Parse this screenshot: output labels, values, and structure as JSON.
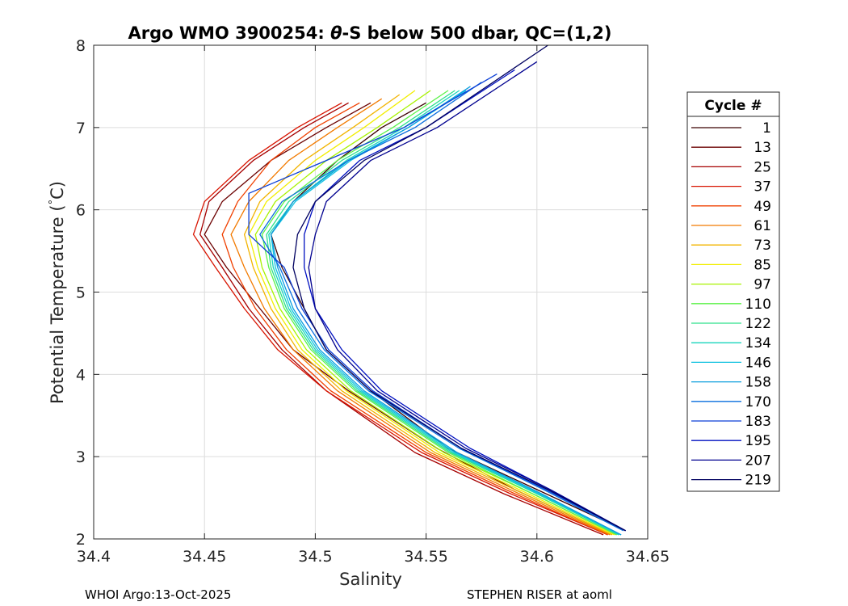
{
  "chart_data": {
    "type": "line",
    "title_parts": [
      "Argo WMO 3900254: ",
      "θ",
      "-S below 500 dbar,  QC=(1,2)"
    ],
    "xlabel": "Salinity",
    "ylabel_parts": [
      "Potential Temperature (",
      "°",
      "C)"
    ],
    "xlim": [
      34.4,
      34.65
    ],
    "ylim": [
      2,
      8
    ],
    "xticks": [
      34.4,
      34.45,
      34.5,
      34.55,
      34.6,
      34.65
    ],
    "xtick_labels": [
      "34.4",
      "34.45",
      "34.5",
      "34.55",
      "34.6",
      "34.65"
    ],
    "yticks": [
      2,
      3,
      4,
      5,
      6,
      7,
      8
    ],
    "ytick_labels": [
      "2",
      "3",
      "4",
      "5",
      "6",
      "7",
      "8"
    ],
    "grid": true,
    "legend": {
      "title": "Cycle #",
      "placement": "right, outside",
      "entries": [
        {
          "label": "1",
          "color": "#3a0000"
        },
        {
          "label": "13",
          "color": "#6b0000"
        },
        {
          "label": "25",
          "color": "#a60000"
        },
        {
          "label": "37",
          "color": "#d81400"
        },
        {
          "label": "49",
          "color": "#f04000"
        },
        {
          "label": "61",
          "color": "#f27a00"
        },
        {
          "label": "73",
          "color": "#f2b400"
        },
        {
          "label": "85",
          "color": "#f2ee00"
        },
        {
          "label": "97",
          "color": "#a8f200"
        },
        {
          "label": "110",
          "color": "#5cf24a"
        },
        {
          "label": "122",
          "color": "#2de08c"
        },
        {
          "label": "134",
          "color": "#18d6bc"
        },
        {
          "label": "146",
          "color": "#10c2e0"
        },
        {
          "label": "158",
          "color": "#0a9ede"
        },
        {
          "label": "170",
          "color": "#0a6ede"
        },
        {
          "label": "183",
          "color": "#0a3ed6"
        },
        {
          "label": "195",
          "color": "#0010c0"
        },
        {
          "label": "207",
          "color": "#00008f"
        },
        {
          "label": "219",
          "color": "#000060"
        }
      ]
    },
    "series": [
      {
        "name": "1",
        "x": [
          34.64,
          34.6,
          34.56,
          34.525,
          34.505,
          34.495,
          34.485,
          34.48,
          34.49,
          34.51,
          34.53,
          34.55
        ],
        "y": [
          2.1,
          2.6,
          3.1,
          3.8,
          4.3,
          4.8,
          5.3,
          5.7,
          6.1,
          6.6,
          7.0,
          7.3
        ]
      },
      {
        "name": "13",
        "x": [
          34.63,
          34.59,
          34.555,
          34.515,
          34.49,
          34.475,
          34.46,
          34.45,
          34.458,
          34.48,
          34.505,
          34.525
        ],
        "y": [
          2.1,
          2.6,
          3.1,
          3.8,
          4.3,
          4.8,
          5.3,
          5.7,
          6.1,
          6.6,
          7.0,
          7.3
        ]
      },
      {
        "name": "25",
        "x": [
          34.63,
          34.585,
          34.545,
          34.505,
          34.485,
          34.47,
          34.458,
          34.448,
          34.452,
          34.472,
          34.495,
          34.515
        ],
        "y": [
          2.05,
          2.55,
          3.05,
          3.8,
          4.3,
          4.8,
          5.3,
          5.7,
          6.1,
          6.6,
          7.0,
          7.3
        ]
      },
      {
        "name": "37",
        "x": [
          34.632,
          34.588,
          34.548,
          34.505,
          34.483,
          34.468,
          34.455,
          34.445,
          34.45,
          34.47,
          34.492,
          34.512
        ],
        "y": [
          2.05,
          2.55,
          3.05,
          3.8,
          4.3,
          4.8,
          5.3,
          5.7,
          6.1,
          6.6,
          7.0,
          7.3
        ]
      },
      {
        "name": "49",
        "x": [
          34.632,
          34.59,
          34.55,
          34.507,
          34.487,
          34.473,
          34.463,
          34.458,
          34.465,
          34.48,
          34.5,
          34.52
        ],
        "y": [
          2.05,
          2.55,
          3.05,
          3.8,
          4.3,
          4.8,
          5.3,
          5.7,
          6.1,
          6.6,
          7.0,
          7.3
        ]
      },
      {
        "name": "61",
        "x": [
          34.633,
          34.592,
          34.552,
          34.51,
          34.49,
          34.477,
          34.468,
          34.462,
          34.47,
          34.488,
          34.51,
          34.53
        ],
        "y": [
          2.05,
          2.55,
          3.05,
          3.8,
          4.3,
          4.8,
          5.3,
          5.7,
          6.1,
          6.6,
          7.0,
          7.35
        ]
      },
      {
        "name": "73",
        "x": [
          34.634,
          34.594,
          34.554,
          34.512,
          34.492,
          34.48,
          34.472,
          34.468,
          34.475,
          34.495,
          34.517,
          34.538
        ],
        "y": [
          2.05,
          2.55,
          3.05,
          3.8,
          4.3,
          4.8,
          5.3,
          5.7,
          6.1,
          6.6,
          7.0,
          7.4
        ]
      },
      {
        "name": "85",
        "x": [
          34.635,
          34.596,
          34.556,
          34.514,
          34.494,
          34.482,
          34.474,
          34.47,
          34.478,
          34.5,
          34.522,
          34.545
        ],
        "y": [
          2.05,
          2.55,
          3.05,
          3.8,
          4.3,
          4.8,
          5.3,
          5.7,
          6.1,
          6.6,
          7.0,
          7.45
        ]
      },
      {
        "name": "97",
        "x": [
          34.636,
          34.598,
          34.558,
          34.516,
          34.496,
          34.484,
          34.476,
          34.473,
          34.482,
          34.505,
          34.528,
          34.552
        ],
        "y": [
          2.05,
          2.55,
          3.05,
          3.8,
          4.3,
          4.8,
          5.3,
          5.7,
          6.1,
          6.6,
          7.0,
          7.45
        ]
      },
      {
        "name": "110",
        "x": [
          34.636,
          34.598,
          34.56,
          34.518,
          34.498,
          34.486,
          34.479,
          34.476,
          34.486,
          34.51,
          34.535,
          34.56
        ],
        "y": [
          2.05,
          2.55,
          3.05,
          3.8,
          4.3,
          4.8,
          5.3,
          5.7,
          6.1,
          6.6,
          7.0,
          7.45
        ]
      },
      {
        "name": "122",
        "x": [
          34.637,
          34.6,
          34.561,
          34.519,
          34.499,
          34.487,
          34.48,
          34.478,
          34.488,
          34.512,
          34.538,
          34.563
        ],
        "y": [
          2.05,
          2.55,
          3.05,
          3.8,
          4.3,
          4.8,
          5.3,
          5.7,
          6.1,
          6.6,
          7.0,
          7.45
        ]
      },
      {
        "name": "134",
        "x": [
          34.637,
          34.6,
          34.562,
          34.52,
          34.5,
          34.488,
          34.481,
          34.479,
          34.49,
          34.514,
          34.54,
          34.565
        ],
        "y": [
          2.05,
          2.55,
          3.05,
          3.8,
          4.3,
          4.8,
          5.3,
          5.7,
          6.1,
          6.6,
          7.0,
          7.45
        ]
      },
      {
        "name": "146",
        "x": [
          34.638,
          34.601,
          34.563,
          34.521,
          34.501,
          34.489,
          34.482,
          34.48,
          34.491,
          34.516,
          34.542,
          34.568
        ],
        "y": [
          2.05,
          2.55,
          3.05,
          3.8,
          4.3,
          4.8,
          5.3,
          5.7,
          6.1,
          6.6,
          7.0,
          7.45
        ]
      },
      {
        "name": "158",
        "x": [
          34.638,
          34.602,
          34.564,
          34.522,
          34.502,
          34.49,
          34.483,
          34.48,
          34.49,
          34.515,
          34.542,
          34.57
        ],
        "y": [
          2.05,
          2.55,
          3.05,
          3.8,
          4.3,
          4.8,
          5.3,
          5.7,
          6.1,
          6.6,
          7.0,
          7.5
        ]
      },
      {
        "name": "170",
        "x": [
          34.639,
          34.603,
          34.565,
          34.524,
          34.504,
          34.492,
          34.484,
          34.475,
          34.485,
          34.515,
          34.545,
          34.575
        ],
        "y": [
          2.1,
          2.6,
          3.1,
          3.8,
          4.3,
          4.8,
          5.3,
          5.7,
          6.1,
          6.6,
          7.0,
          7.55
        ]
      },
      {
        "name": "183",
        "x": [
          34.64,
          34.604,
          34.566,
          34.526,
          34.506,
          34.494,
          34.486,
          34.47,
          34.47,
          34.505,
          34.54,
          34.582
        ],
        "y": [
          2.1,
          2.6,
          3.1,
          3.8,
          4.3,
          4.8,
          5.3,
          5.7,
          6.2,
          6.6,
          7.0,
          7.65
        ]
      },
      {
        "name": "195",
        "x": [
          34.64,
          34.606,
          34.57,
          34.53,
          34.512,
          34.5,
          34.495,
          34.495,
          34.5,
          34.52,
          34.55,
          34.59
        ],
        "y": [
          2.1,
          2.6,
          3.1,
          3.8,
          4.3,
          4.8,
          5.3,
          5.7,
          6.1,
          6.6,
          7.0,
          7.7
        ]
      },
      {
        "name": "207",
        "x": [
          34.64,
          34.606,
          34.568,
          34.528,
          34.51,
          34.5,
          34.497,
          34.5,
          34.505,
          34.525,
          34.555,
          34.6
        ],
        "y": [
          2.1,
          2.6,
          3.1,
          3.8,
          4.3,
          4.8,
          5.3,
          5.7,
          6.1,
          6.6,
          7.0,
          7.8
        ]
      },
      {
        "name": "219",
        "x": [
          34.64,
          34.605,
          34.566,
          34.525,
          34.505,
          34.495,
          34.49,
          34.492,
          34.5,
          34.522,
          34.55,
          34.605
        ],
        "y": [
          2.1,
          2.6,
          3.1,
          3.8,
          4.3,
          4.8,
          5.3,
          5.7,
          6.1,
          6.6,
          7.0,
          8.0
        ]
      }
    ]
  },
  "footer": {
    "left": "WHOI Argo:13-Oct-2025",
    "right": "STEPHEN RISER at aoml"
  }
}
